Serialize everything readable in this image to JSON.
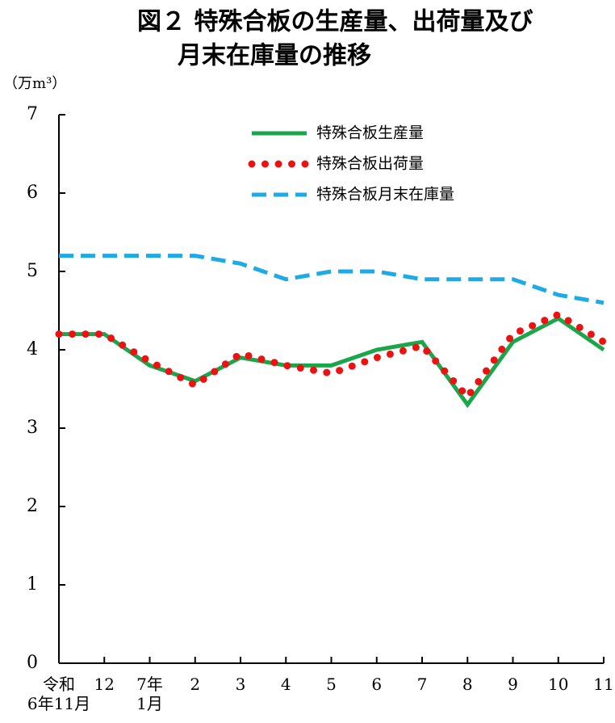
{
  "chart_data": {
    "type": "line",
    "title": [
      "図２ 特殊合板の生産量、出荷量及び",
      "月末在庫量の推移"
    ],
    "y_label": "（万m³）",
    "categories": [
      "令和\n6年11月",
      "12",
      "7年\n1月",
      "2",
      "3",
      "4",
      "5",
      "6",
      "7",
      "8",
      "9",
      "10",
      "11"
    ],
    "series": [
      {
        "name": "特殊合板生産量",
        "color": "#1aa64a",
        "style": "solid",
        "values": [
          4.2,
          4.2,
          3.8,
          3.6,
          3.9,
          3.8,
          3.8,
          4.0,
          4.1,
          3.3,
          4.1,
          4.4,
          4.0
        ]
      },
      {
        "name": "特殊合板出荷量",
        "color": "#ee1111",
        "style": "dotted",
        "values": [
          4.2,
          4.2,
          3.85,
          3.55,
          3.95,
          3.8,
          3.7,
          3.9,
          4.05,
          3.4,
          4.2,
          4.45,
          4.1
        ]
      },
      {
        "name": "特殊合板月末在庫量",
        "color": "#1eaae6",
        "style": "dashed",
        "values": [
          5.2,
          5.2,
          5.2,
          5.2,
          5.1,
          4.9,
          5.0,
          5.0,
          4.9,
          4.9,
          4.9,
          4.7,
          4.6
        ]
      }
    ],
    "ylim": [
      0,
      7
    ],
    "yticks": [
      0,
      1,
      2,
      3,
      4,
      5,
      6,
      7
    ]
  }
}
